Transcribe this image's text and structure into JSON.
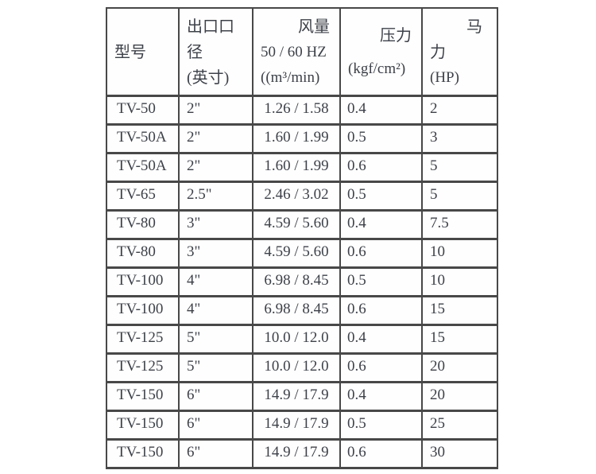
{
  "page": {
    "background": "#ffffff"
  },
  "table": {
    "colors": {
      "border": "#484848",
      "text": "#3d4149",
      "cell_background": "#fefefe"
    },
    "headers": [
      {
        "id": "model",
        "lines": [
          "型号"
        ]
      },
      {
        "id": "outlet",
        "lines": [
          "出口口",
          "径",
          "(英寸)"
        ]
      },
      {
        "id": "airflow",
        "lines": [
          "风量",
          "50 / 60 HZ",
          "((m³/min)"
        ]
      },
      {
        "id": "pressure",
        "lines": [
          "压力",
          "(kgf/cm²)"
        ]
      },
      {
        "id": "power",
        "lines": [
          "马",
          "力",
          "(HP)"
        ]
      }
    ],
    "rows": [
      {
        "model": "TV-50",
        "outlet": "2\"",
        "airflow": "1.26 / 1.58",
        "pressure": "0.4",
        "power": "2"
      },
      {
        "model": "TV-50A",
        "outlet": "2\"",
        "airflow": "1.60 / 1.99",
        "pressure": "0.5",
        "power": "3"
      },
      {
        "model": "TV-50A",
        "outlet": "2\"",
        "airflow": "1.60 / 1.99",
        "pressure": "0.6",
        "power": "5"
      },
      {
        "model": "TV-65",
        "outlet": "2.5\"",
        "airflow": "2.46 / 3.02",
        "pressure": "0.5",
        "power": "5"
      },
      {
        "model": "TV-80",
        "outlet": "3\"",
        "airflow": "4.59 / 5.60",
        "pressure": "0.4",
        "power": "7.5"
      },
      {
        "model": "TV-80",
        "outlet": "3\"",
        "airflow": "4.59 / 5.60",
        "pressure": "0.6",
        "power": "10"
      },
      {
        "model": "TV-100",
        "outlet": "4\"",
        "airflow": "6.98 / 8.45",
        "pressure": "0.5",
        "power": "10"
      },
      {
        "model": "TV-100",
        "outlet": "4\"",
        "airflow": "6.98 / 8.45",
        "pressure": "0.6",
        "power": "15"
      },
      {
        "model": "TV-125",
        "outlet": "5\"",
        "airflow": "10.0 / 12.0",
        "pressure": "0.4",
        "power": "15"
      },
      {
        "model": "TV-125",
        "outlet": "5\"",
        "airflow": "10.0 / 12.0",
        "pressure": "0.6",
        "power": "20"
      },
      {
        "model": "TV-150",
        "outlet": "6\"",
        "airflow": "14.9 / 17.9",
        "pressure": "0.4",
        "power": "20"
      },
      {
        "model": "TV-150",
        "outlet": "6\"",
        "airflow": "14.9 / 17.9",
        "pressure": "0.5",
        "power": "25"
      },
      {
        "model": "TV-150",
        "outlet": "6\"",
        "airflow": "14.9 / 17.9",
        "pressure": "0.6",
        "power": "30"
      }
    ]
  }
}
